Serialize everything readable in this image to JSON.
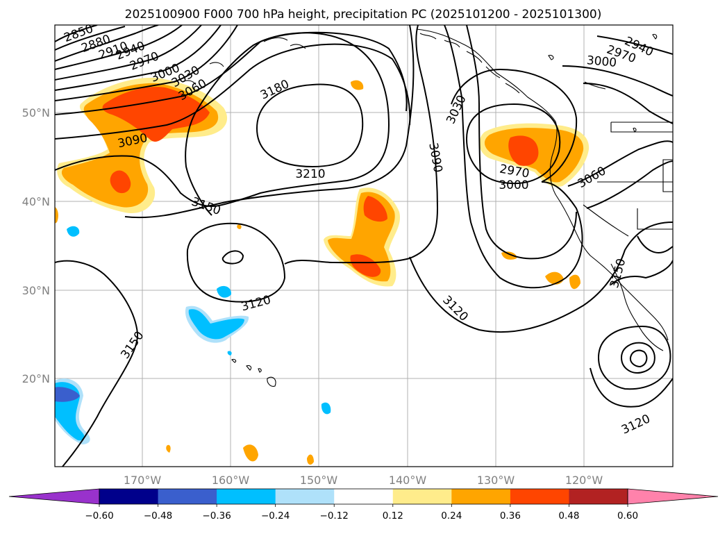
{
  "title": "2025100900 F000 700 hPa height, precipitation PC (2025101200 - 2025101300)",
  "lon_ticks": [
    "170°W",
    "160°W",
    "150°W",
    "140°W",
    "130°W",
    "120°W"
  ],
  "lat_ticks": [
    "50°N",
    "40°N",
    "30°N",
    "20°N"
  ],
  "colorbar": {
    "ticks": [
      "−0.60",
      "−0.48",
      "−0.36",
      "−0.24",
      "−0.12",
      "0.12",
      "0.24",
      "0.36",
      "0.48",
      "0.60"
    ],
    "colors": [
      "#9932cc",
      "#00008b",
      "#3a5fcd",
      "#00bfff",
      "#afe1fa",
      "#ffffff",
      "#ffec8b",
      "#ffa500",
      "#ff4500",
      "#b22222",
      "#ff82ab"
    ]
  },
  "contour_labels": [
    "2850",
    "2880",
    "2910",
    "2940",
    "2970",
    "3000",
    "3030",
    "3060",
    "3090",
    "3180",
    "3210",
    "3150",
    "3120",
    "3150",
    "3030",
    "3090",
    "2970",
    "3000",
    "3060",
    "2940",
    "2970",
    "3000",
    "3120",
    "3150",
    "3120"
  ]
}
